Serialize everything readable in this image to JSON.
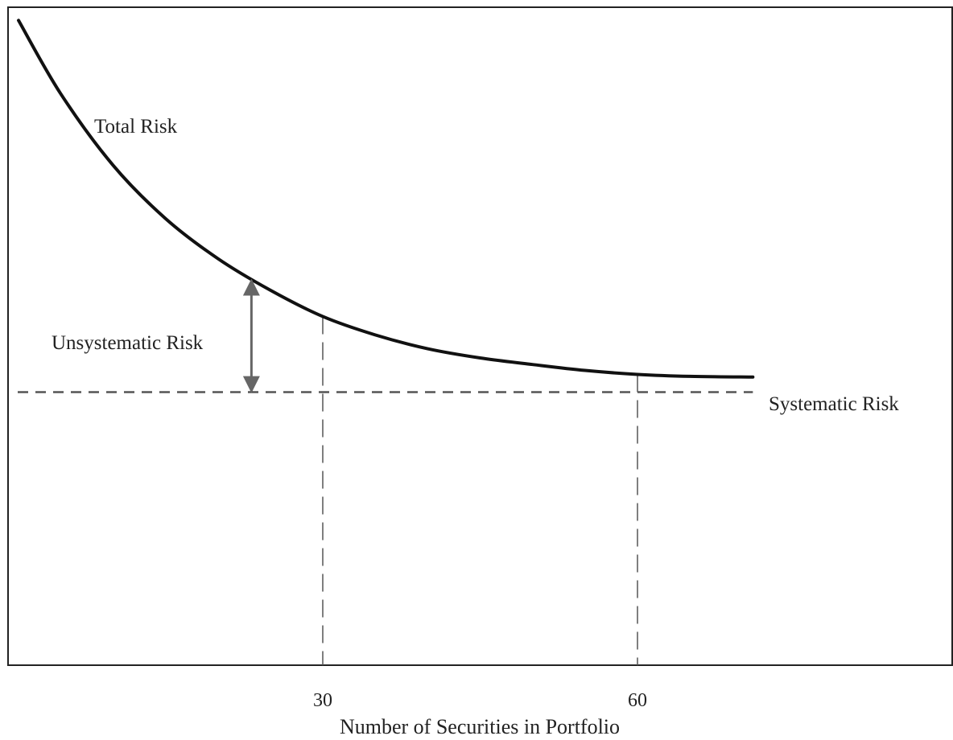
{
  "chart_data": {
    "type": "line",
    "title": "",
    "xlabel": "Number of Securities in Portfolio",
    "ylabel": "",
    "xlim": [
      0,
      90
    ],
    "ylim": [
      0,
      100
    ],
    "x_ticks": [
      {
        "value": 30,
        "label": "30"
      },
      {
        "value": 60,
        "label": "60"
      }
    ],
    "series": [
      {
        "name": "Total Risk",
        "x": [
          1,
          5,
          10,
          15,
          20,
          25,
          30,
          35,
          40,
          45,
          50,
          55,
          60,
          65,
          71
        ],
        "y": [
          98,
          86.9,
          76.0,
          67.9,
          61.8,
          57.0,
          53.0,
          50.2,
          48.1,
          46.7,
          45.7,
          44.8,
          44.2,
          43.9,
          43.8
        ]
      }
    ],
    "reference_lines": {
      "systematic_risk_level": 41.5,
      "vertical_guides_x": [
        30,
        60
      ]
    },
    "annotations": {
      "total_risk": "Total Risk",
      "unsystematic_risk": "Unsystematic Risk",
      "systematic_risk": "Systematic Risk",
      "unsystematic_arrow_x": 23.2
    },
    "grid": false,
    "legend": "none"
  }
}
